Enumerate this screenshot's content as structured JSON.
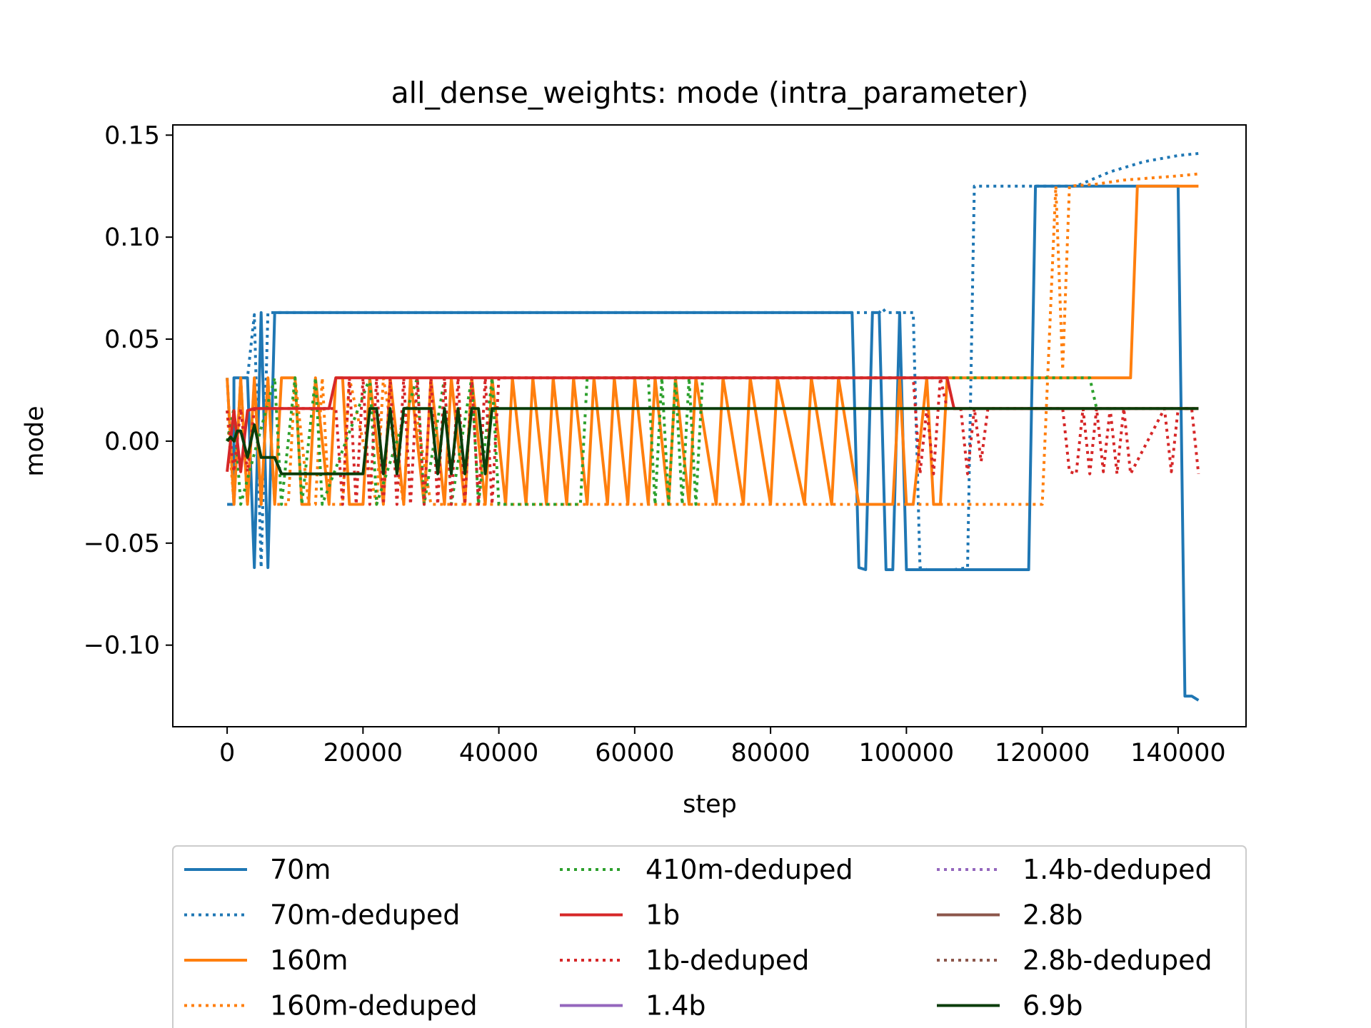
{
  "chart_data": {
    "type": "line",
    "title": "all_dense_weights: mode (intra_parameter)",
    "xlabel": "step",
    "ylabel": "mode",
    "xlim": [
      -8000,
      150000
    ],
    "ylim": [
      -0.14,
      0.155
    ],
    "xticks": [
      0,
      20000,
      40000,
      60000,
      80000,
      100000,
      120000,
      140000
    ],
    "xtick_labels": [
      "0",
      "20000",
      "40000",
      "60000",
      "80000",
      "100000",
      "120000",
      "140000"
    ],
    "yticks": [
      0.15,
      0.1,
      0.05,
      0.0,
      -0.05,
      -0.1
    ],
    "ytick_labels": [
      "0.15",
      "0.10",
      "0.05",
      "0.00",
      "−0.05",
      "−0.10"
    ],
    "grid": false,
    "legend_placement": "below",
    "series": [
      {
        "name": "70m",
        "color": "#1f77b4",
        "style": "solid",
        "x": [
          0,
          1000,
          1000,
          2000,
          3000,
          4000,
          5000,
          6000,
          7000,
          20000,
          40000,
          60000,
          80000,
          92000,
          93000,
          94000,
          95000,
          96000,
          97000,
          98000,
          99000,
          100000,
          101000,
          110000,
          118000,
          119000,
          125000,
          140000,
          141000,
          142000,
          143000
        ],
        "y": [
          -0.031,
          -0.031,
          0.031,
          0.031,
          0.031,
          -0.062,
          0.063,
          -0.062,
          0.063,
          0.063,
          0.063,
          0.063,
          0.063,
          0.063,
          -0.062,
          -0.063,
          0.063,
          0.063,
          -0.063,
          -0.063,
          0.063,
          -0.063,
          -0.063,
          -0.063,
          -0.063,
          0.125,
          0.125,
          0.125,
          -0.125,
          -0.125,
          -0.127
        ]
      },
      {
        "name": "70m-deduped",
        "color": "#1f77b4",
        "style": "dotted",
        "x": [
          0,
          1000,
          2000,
          3000,
          4000,
          5000,
          6000,
          20000,
          60000,
          90000,
          96000,
          96500,
          97000,
          99000,
          100000,
          101000,
          102000,
          103000,
          107000,
          109000,
          110000,
          120000,
          125000,
          130000,
          135000,
          140000,
          143000
        ],
        "y": [
          0.031,
          -0.031,
          0.031,
          0.031,
          0.062,
          -0.062,
          0.063,
          0.063,
          0.063,
          0.063,
          0.063,
          0.065,
          0.063,
          0.063,
          0.063,
          0.063,
          -0.062,
          -0.063,
          -0.063,
          -0.062,
          0.125,
          0.125,
          0.125,
          0.132,
          0.137,
          0.14,
          0.141
        ]
      },
      {
        "name": "160m",
        "color": "#ff7f0e",
        "style": "solid",
        "x": [
          0,
          1000,
          2000,
          3000,
          4000,
          5000,
          6000,
          7000,
          8000,
          10000,
          11000,
          12000,
          13000,
          15000,
          16000,
          17000,
          18000,
          20000,
          21000,
          23000,
          24000,
          26000,
          27000,
          29000,
          30000,
          32000,
          33000,
          35000,
          36000,
          38000,
          39000,
          41000,
          42000,
          44000,
          45000,
          47000,
          48000,
          50000,
          51000,
          53000,
          54000,
          56000,
          57000,
          59000,
          60000,
          62000,
          63000,
          65000,
          66000,
          68000,
          69000,
          72000,
          73000,
          76000,
          77000,
          80000,
          81000,
          85000,
          86000,
          89000,
          90000,
          93000,
          98000,
          99000,
          100000,
          101000,
          103000,
          104000,
          105000,
          106000,
          133000,
          134000,
          143000
        ],
        "y": [
          0.031,
          -0.031,
          0.031,
          -0.031,
          0.031,
          -0.031,
          0.031,
          -0.031,
          0.031,
          0.031,
          -0.031,
          -0.031,
          0.031,
          -0.031,
          0.031,
          0.031,
          -0.031,
          -0.031,
          0.031,
          -0.031,
          0.031,
          -0.031,
          0.031,
          -0.031,
          0.031,
          -0.031,
          0.031,
          -0.031,
          0.031,
          -0.031,
          0.031,
          -0.031,
          0.031,
          -0.031,
          0.031,
          -0.031,
          0.031,
          -0.031,
          0.031,
          -0.031,
          0.031,
          -0.031,
          0.031,
          -0.031,
          0.031,
          -0.031,
          0.031,
          -0.031,
          0.031,
          -0.031,
          0.031,
          -0.031,
          0.031,
          -0.031,
          0.031,
          -0.031,
          0.031,
          -0.031,
          0.031,
          -0.031,
          0.031,
          -0.031,
          -0.031,
          0.031,
          -0.031,
          -0.031,
          0.031,
          -0.031,
          -0.031,
          0.031,
          0.031,
          0.125,
          0.125
        ]
      },
      {
        "name": "160m-deduped",
        "color": "#ff7f0e",
        "style": "dotted",
        "x": [
          0,
          1000,
          2000,
          3000,
          4000,
          5000,
          6000,
          7000,
          9000,
          10000,
          12000,
          13000,
          14000,
          15000,
          17000,
          18000,
          22000,
          23000,
          26000,
          27000,
          30000,
          31000,
          40000,
          60000,
          80000,
          100000,
          110000,
          120000,
          122000,
          123000,
          124000,
          128000,
          132000,
          136000,
          140000,
          143000
        ],
        "y": [
          0.015,
          -0.031,
          0.031,
          -0.031,
          0.031,
          -0.031,
          0.031,
          -0.031,
          -0.031,
          0.031,
          -0.031,
          -0.031,
          0.031,
          -0.031,
          -0.031,
          0.031,
          -0.031,
          0.031,
          -0.031,
          0.031,
          -0.031,
          -0.031,
          -0.031,
          -0.031,
          -0.031,
          -0.031,
          -0.031,
          -0.031,
          0.125,
          0.035,
          0.125,
          0.126,
          0.128,
          0.129,
          0.13,
          0.131
        ]
      },
      {
        "name": "410m-deduped",
        "color": "#2ca02c",
        "style": "dotted",
        "x": [
          0,
          1000,
          2000,
          7000,
          8000,
          10000,
          11000,
          13000,
          14000,
          21000,
          22000,
          28000,
          29000,
          32000,
          33000,
          36000,
          37000,
          39000,
          40000,
          52000,
          53000,
          62000,
          63000,
          64000,
          65000,
          66000,
          67000,
          68000,
          69000,
          70000,
          100000,
          125000,
          126000,
          127000,
          128000,
          143000
        ],
        "y": [
          0.0,
          0.016,
          -0.031,
          0.031,
          -0.031,
          0.031,
          -0.031,
          0.031,
          -0.031,
          0.031,
          -0.031,
          0.031,
          -0.031,
          0.031,
          -0.031,
          0.031,
          -0.031,
          0.031,
          -0.031,
          -0.031,
          0.031,
          0.031,
          -0.031,
          0.031,
          -0.031,
          0.031,
          -0.031,
          0.031,
          -0.031,
          0.031,
          0.031,
          0.031,
          0.031,
          0.031,
          0.016,
          0.016
        ]
      },
      {
        "name": "1b",
        "color": "#d62728",
        "style": "solid",
        "x": [
          0,
          1000,
          2000,
          3000,
          4000,
          15000,
          16000,
          40000,
          60000,
          80000,
          106000,
          107000,
          143000
        ],
        "y": [
          -0.015,
          0.015,
          -0.015,
          0.015,
          0.016,
          0.016,
          0.031,
          0.031,
          0.031,
          0.031,
          0.031,
          0.016,
          0.016
        ]
      },
      {
        "name": "1b-deduped",
        "color": "#d62728",
        "style": "dotted",
        "x": [
          0,
          1000,
          2000,
          3000,
          4000,
          16000,
          17000,
          18000,
          19000,
          20000,
          21000,
          22000,
          23000,
          24000,
          25000,
          26000,
          27000,
          28000,
          29000,
          30000,
          31000,
          32000,
          33000,
          34000,
          35000,
          36000,
          37000,
          38000,
          39000,
          40000,
          60000,
          61000,
          62000,
          63000,
          64000,
          65000,
          66000,
          100000,
          101000,
          102000,
          103000,
          104000,
          105000,
          106000,
          107000,
          108000,
          109000,
          110000,
          111000,
          112000,
          123000,
          124000,
          125000,
          126000,
          127000,
          128000,
          129000,
          130000,
          131000,
          132000,
          133000,
          138000,
          139000,
          140000,
          141000,
          142000,
          143000
        ],
        "y": [
          0.015,
          -0.015,
          0.016,
          -0.015,
          0.016,
          0.016,
          -0.031,
          0.031,
          -0.031,
          0.031,
          -0.031,
          0.031,
          -0.031,
          0.031,
          -0.031,
          0.031,
          -0.031,
          0.031,
          -0.031,
          0.031,
          -0.031,
          0.031,
          -0.031,
          0.031,
          -0.031,
          0.031,
          -0.031,
          0.031,
          -0.031,
          0.031,
          0.031,
          0.031,
          0.031,
          0.031,
          0.031,
          0.031,
          0.031,
          0.031,
          0.031,
          -0.016,
          0.016,
          -0.016,
          0.031,
          0.016,
          0.016,
          0.016,
          -0.016,
          0.016,
          -0.01,
          0.016,
          0.016,
          -0.015,
          -0.016,
          0.016,
          -0.016,
          0.016,
          -0.015,
          0.016,
          -0.016,
          0.016,
          -0.016,
          0.016,
          -0.015,
          0.016,
          0.016,
          0.016,
          -0.016
        ]
      },
      {
        "name": "1.4b",
        "color": "#9467bd",
        "style": "solid",
        "x": [],
        "y": []
      },
      {
        "name": "1.4b-deduped",
        "color": "#9467bd",
        "style": "dotted",
        "x": [],
        "y": []
      },
      {
        "name": "2.8b",
        "color": "#8c564b",
        "style": "solid",
        "x": [],
        "y": []
      },
      {
        "name": "2.8b-deduped",
        "color": "#8c564b",
        "style": "dotted",
        "x": [],
        "y": []
      },
      {
        "name": "6.9b",
        "color": "#0b3d0b",
        "style": "solid",
        "x": [
          0,
          500,
          1000,
          1500,
          2000,
          3000,
          3500,
          4000,
          5000,
          6000,
          7000,
          8000,
          10000,
          20000,
          21000,
          22000,
          23000,
          24000,
          25000,
          26000,
          27000,
          30000,
          31000,
          32000,
          33000,
          34000,
          35000,
          36000,
          37000,
          38000,
          39000,
          40000,
          60000,
          80000,
          100000,
          120000,
          143000
        ],
        "y": [
          0.0,
          0.002,
          0.0,
          0.005,
          0.005,
          -0.008,
          0.0,
          0.008,
          -0.008,
          -0.008,
          -0.008,
          -0.016,
          -0.016,
          -0.016,
          0.016,
          0.016,
          -0.016,
          0.016,
          -0.016,
          0.016,
          0.016,
          0.016,
          -0.016,
          0.016,
          -0.016,
          0.016,
          -0.016,
          0.016,
          0.016,
          -0.016,
          0.016,
          0.016,
          0.016,
          0.016,
          0.016,
          0.016,
          0.016
        ]
      }
    ]
  }
}
